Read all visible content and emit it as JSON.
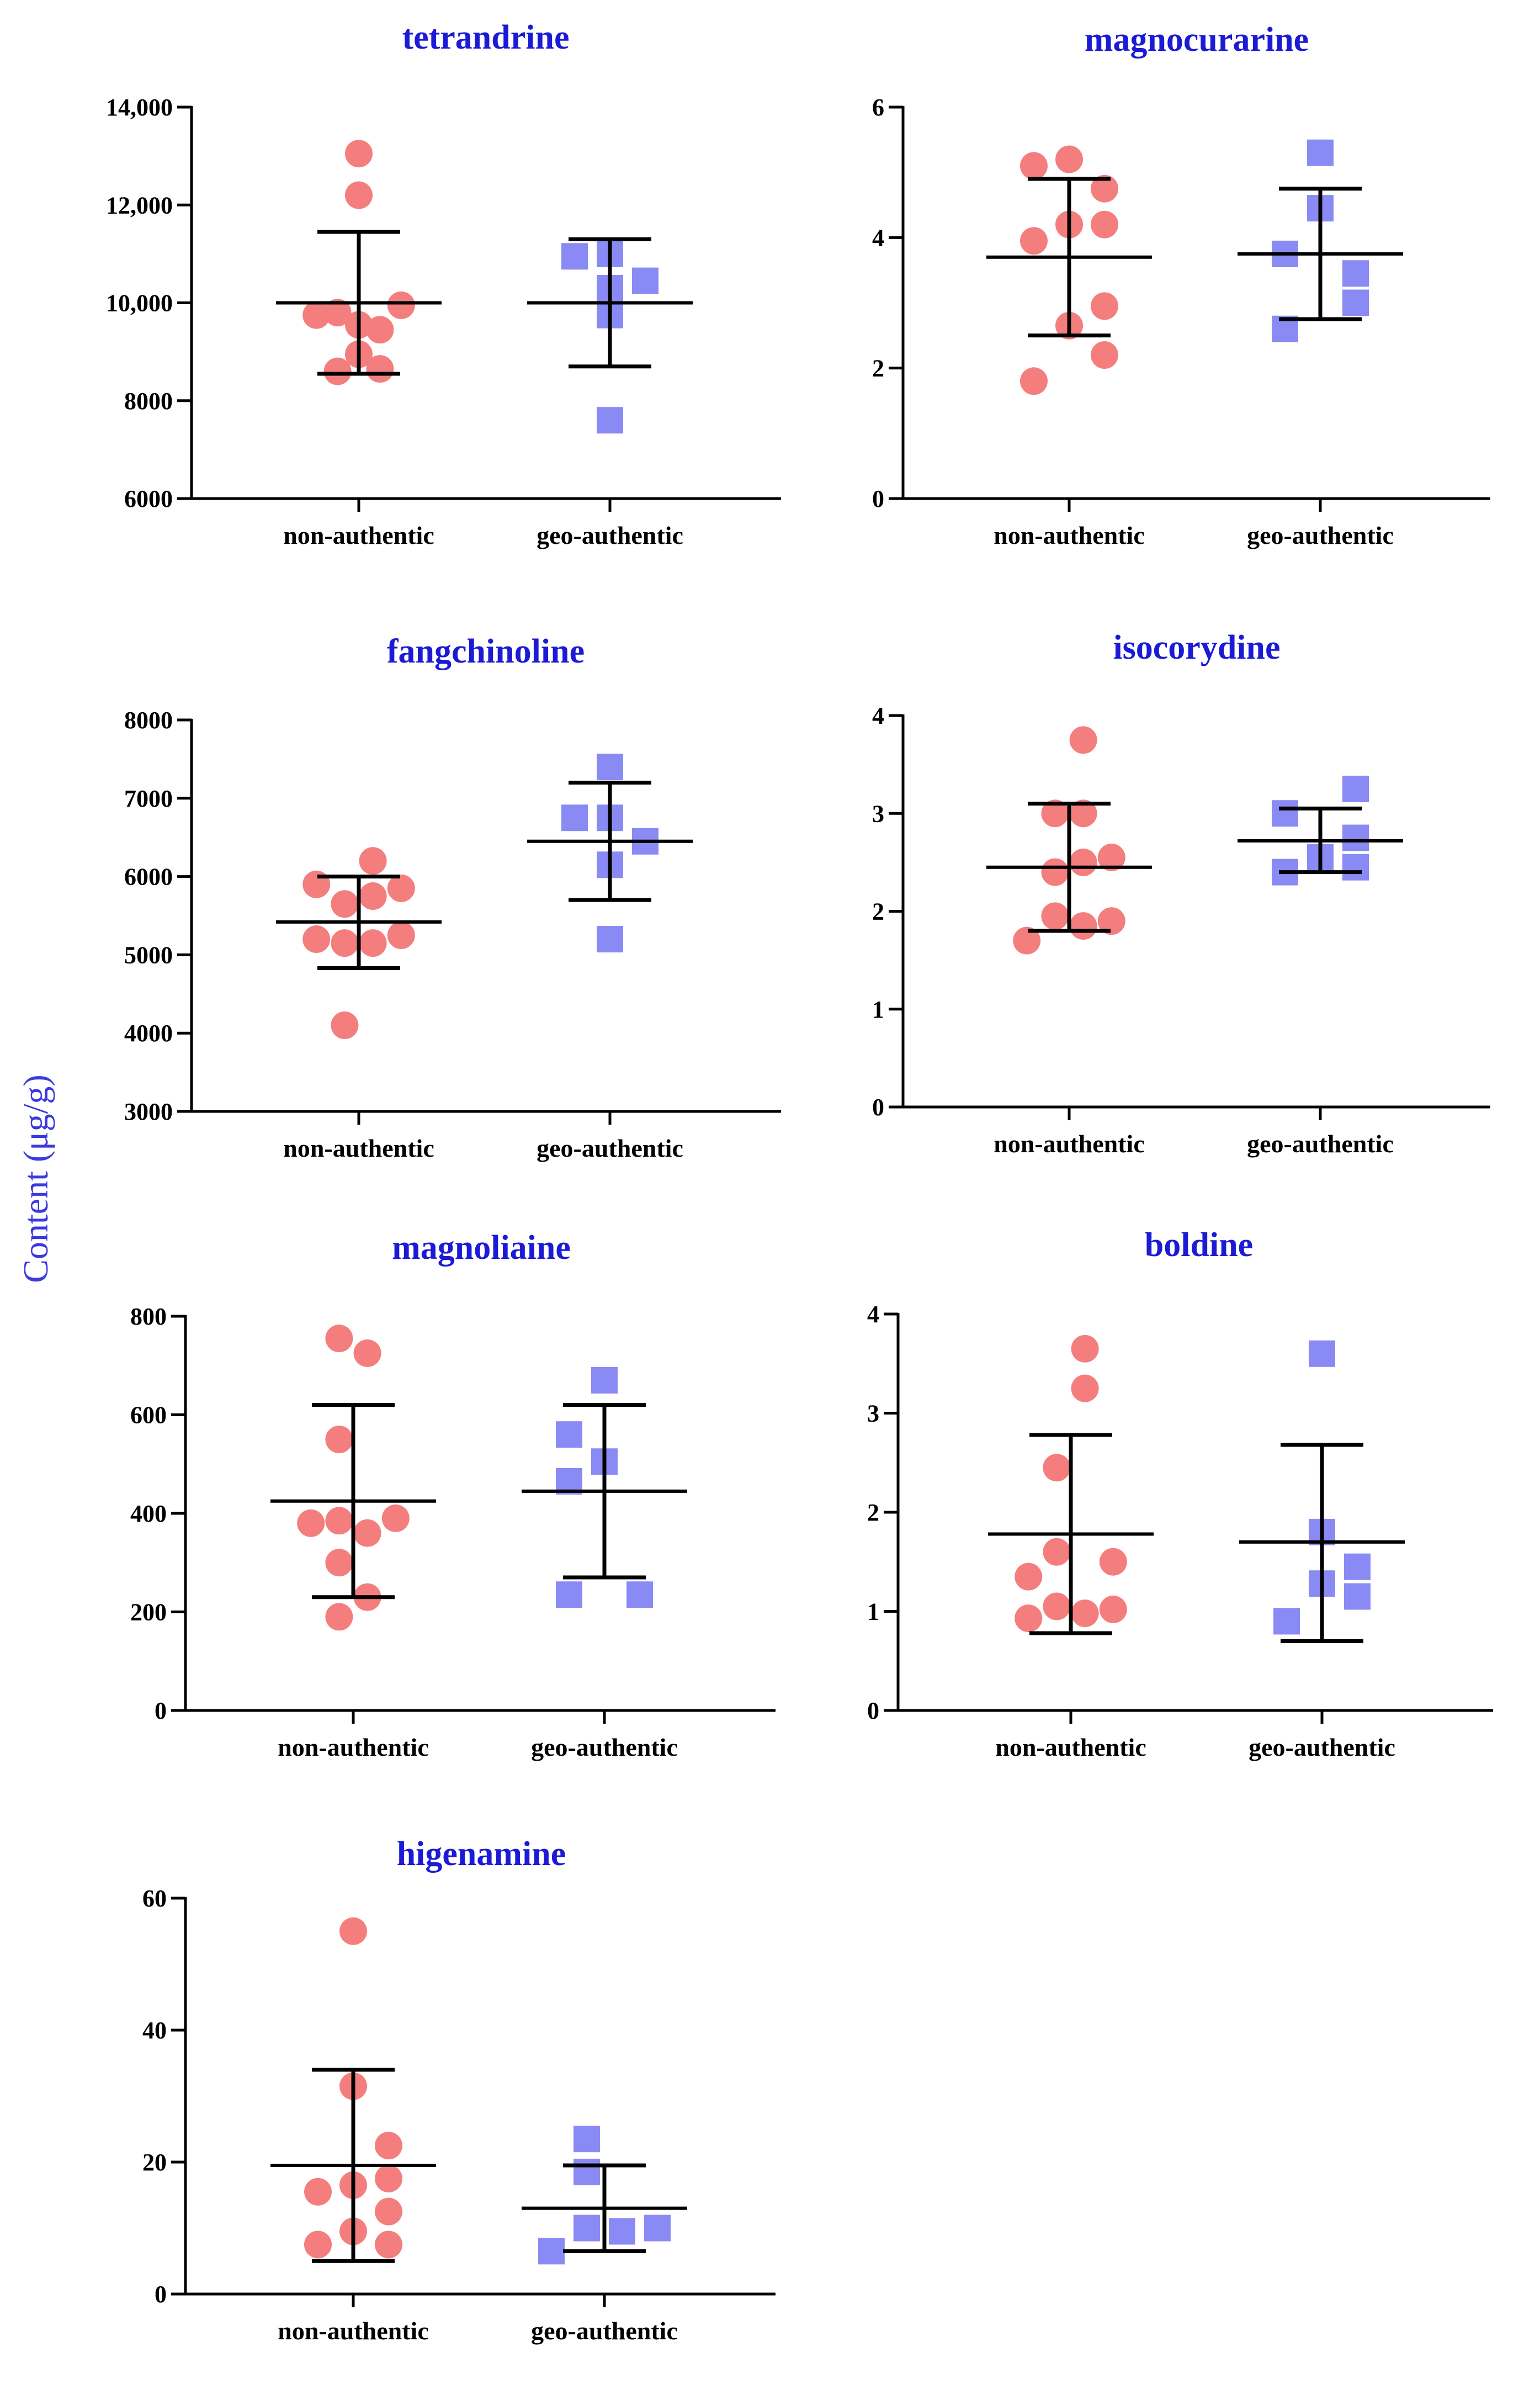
{
  "y_label": "Content (μg/g)",
  "colors": {
    "title": "#1b1bd6",
    "axis_label": "#3a3ae0",
    "circle": "#f47e7e",
    "square": "#8a8af5",
    "bars": "#000000"
  },
  "chart_data": [
    {
      "type": "scatter",
      "title": "tetrandrine",
      "ylim": [
        6000,
        14000
      ],
      "yticks": [
        6000,
        8000,
        10000,
        12000,
        14000
      ],
      "ytick_labels": [
        "6000",
        "8000",
        "10,000",
        "12,000",
        "14,000"
      ],
      "categories": [
        "non-authentic",
        "geo-authentic"
      ],
      "series": [
        {
          "category": "non-authentic",
          "marker": "circle",
          "points": [
            [
              -1.2,
              9750
            ],
            [
              -0.6,
              9800
            ],
            [
              0,
              13050
            ],
            [
              0,
              12200
            ],
            [
              0,
              9550
            ],
            [
              0,
              8950
            ],
            [
              0.6,
              9450
            ],
            [
              1.2,
              9950
            ],
            [
              -0.6,
              8600
            ],
            [
              0.6,
              8650
            ]
          ],
          "mean": 10000,
          "err_high": 11450,
          "err_low": 8550
        },
        {
          "category": "geo-authentic",
          "marker": "square",
          "points": [
            [
              -1,
              10950
            ],
            [
              0,
              11000
            ],
            [
              0,
              10300
            ],
            [
              0,
              9750
            ],
            [
              1,
              10450
            ],
            [
              0,
              7600
            ]
          ],
          "mean": 10000,
          "err_high": 11300,
          "err_low": 8700
        }
      ]
    },
    {
      "type": "scatter",
      "title": "magnocurarine",
      "ylim": [
        0,
        6
      ],
      "yticks": [
        0,
        2,
        4,
        6
      ],
      "ytick_labels": [
        "0",
        "2",
        "4",
        "6"
      ],
      "categories": [
        "non-authentic",
        "geo-authentic"
      ],
      "series": [
        {
          "category": "non-authentic",
          "marker": "circle",
          "points": [
            [
              -1,
              5.1
            ],
            [
              0,
              5.2
            ],
            [
              1,
              4.75
            ],
            [
              -1,
              3.95
            ],
            [
              0,
              4.2
            ],
            [
              1,
              4.2
            ],
            [
              0,
              2.65
            ],
            [
              1,
              2.95
            ],
            [
              1,
              2.2
            ],
            [
              -1,
              1.8
            ]
          ],
          "mean": 3.7,
          "err_high": 4.9,
          "err_low": 2.5
        },
        {
          "category": "geo-authentic",
          "marker": "square",
          "points": [
            [
              0,
              5.3
            ],
            [
              0,
              4.45
            ],
            [
              -1,
              3.75
            ],
            [
              1,
              3.45
            ],
            [
              1,
              3.0
            ],
            [
              -1,
              2.6
            ]
          ],
          "mean": 3.75,
          "err_high": 4.75,
          "err_low": 2.75
        }
      ]
    },
    {
      "type": "scatter",
      "title": "fangchinoline",
      "ylim": [
        3000,
        8000
      ],
      "yticks": [
        3000,
        4000,
        5000,
        6000,
        7000,
        8000
      ],
      "ytick_labels": [
        "3000",
        "4000",
        "5000",
        "6000",
        "7000",
        "8000"
      ],
      "categories": [
        "non-authentic",
        "geo-authentic"
      ],
      "series": [
        {
          "category": "non-authentic",
          "marker": "circle",
          "points": [
            [
              -1.2,
              5900
            ],
            [
              0.4,
              6200
            ],
            [
              1.2,
              5850
            ],
            [
              -0.4,
              5650
            ],
            [
              0.4,
              5750
            ],
            [
              -1.2,
              5200
            ],
            [
              -0.4,
              5150
            ],
            [
              0.4,
              5150
            ],
            [
              1.2,
              5250
            ],
            [
              -0.4,
              4100
            ]
          ],
          "mean": 5420,
          "err_high": 6000,
          "err_low": 4830
        },
        {
          "category": "geo-authentic",
          "marker": "square",
          "points": [
            [
              0,
              7400
            ],
            [
              -1,
              6750
            ],
            [
              0,
              6750
            ],
            [
              1,
              6450
            ],
            [
              0,
              6150
            ],
            [
              0,
              5200
            ]
          ],
          "mean": 6450,
          "err_high": 7200,
          "err_low": 5700
        }
      ]
    },
    {
      "type": "scatter",
      "title": "isocorydine",
      "ylim": [
        0,
        4
      ],
      "yticks": [
        0,
        1,
        2,
        3,
        4
      ],
      "ytick_labels": [
        "0",
        "1",
        "2",
        "3",
        "4"
      ],
      "categories": [
        "non-authentic",
        "geo-authentic"
      ],
      "series": [
        {
          "category": "non-authentic",
          "marker": "circle",
          "points": [
            [
              0.4,
              3.75
            ],
            [
              -0.4,
              3.0
            ],
            [
              0.4,
              3.0
            ],
            [
              -0.4,
              2.4
            ],
            [
              0.4,
              2.5
            ],
            [
              1.2,
              2.55
            ],
            [
              -0.4,
              1.95
            ],
            [
              0.4,
              1.85
            ],
            [
              1.2,
              1.9
            ],
            [
              -1.2,
              1.7
            ]
          ],
          "mean": 2.45,
          "err_high": 3.1,
          "err_low": 1.8
        },
        {
          "category": "geo-authentic",
          "marker": "square",
          "points": [
            [
              -1,
              3.0
            ],
            [
              1,
              3.25
            ],
            [
              1,
              2.75
            ],
            [
              0,
              2.55
            ],
            [
              -1,
              2.4
            ],
            [
              1,
              2.45
            ]
          ],
          "mean": 2.72,
          "err_high": 3.05,
          "err_low": 2.4
        }
      ]
    },
    {
      "type": "scatter",
      "title": "magnoliaine",
      "ylim": [
        0,
        800
      ],
      "yticks": [
        0,
        200,
        400,
        600,
        800
      ],
      "ytick_labels": [
        "0",
        "200",
        "400",
        "600",
        "800"
      ],
      "categories": [
        "non-authentic",
        "geo-authentic"
      ],
      "series": [
        {
          "category": "non-authentic",
          "marker": "circle",
          "points": [
            [
              -0.4,
              755
            ],
            [
              0.4,
              725
            ],
            [
              -0.4,
              550
            ],
            [
              -1.2,
              380
            ],
            [
              -0.4,
              385
            ],
            [
              0.4,
              360
            ],
            [
              1.2,
              390
            ],
            [
              -0.4,
              300
            ],
            [
              0.4,
              230
            ],
            [
              -0.4,
              190
            ]
          ],
          "mean": 425,
          "err_high": 620,
          "err_low": 230
        },
        {
          "category": "geo-authentic",
          "marker": "square",
          "points": [
            [
              0,
              670
            ],
            [
              -1,
              560
            ],
            [
              0,
              505
            ],
            [
              -1,
              465
            ],
            [
              -1,
              235
            ],
            [
              1,
              235
            ]
          ],
          "mean": 445,
          "err_high": 620,
          "err_low": 270
        }
      ]
    },
    {
      "type": "scatter",
      "title": "boldine",
      "ylim": [
        0,
        4
      ],
      "yticks": [
        0,
        1,
        2,
        3,
        4
      ],
      "ytick_labels": [
        "0",
        "1",
        "2",
        "3",
        "4"
      ],
      "categories": [
        "non-authentic",
        "geo-authentic"
      ],
      "series": [
        {
          "category": "non-authentic",
          "marker": "circle",
          "points": [
            [
              0.4,
              3.65
            ],
            [
              0.4,
              3.25
            ],
            [
              -0.4,
              2.45
            ],
            [
              -0.4,
              1.6
            ],
            [
              1.2,
              1.5
            ],
            [
              -1.2,
              1.35
            ],
            [
              -0.4,
              1.05
            ],
            [
              0.4,
              0.98
            ],
            [
              1.2,
              1.02
            ],
            [
              -1.2,
              0.93
            ]
          ],
          "mean": 1.78,
          "err_high": 2.78,
          "err_low": 0.78
        },
        {
          "category": "geo-authentic",
          "marker": "square",
          "points": [
            [
              0,
              3.6
            ],
            [
              0,
              1.8
            ],
            [
              0,
              1.28
            ],
            [
              1,
              1.45
            ],
            [
              1,
              1.15
            ],
            [
              -1,
              0.9
            ]
          ],
          "mean": 1.7,
          "err_high": 2.68,
          "err_low": 0.7
        }
      ]
    },
    {
      "type": "scatter",
      "title": "higenamine",
      "ylim": [
        0,
        60
      ],
      "yticks": [
        0,
        20,
        40,
        60
      ],
      "ytick_labels": [
        "0",
        "20",
        "40",
        "60"
      ],
      "categories": [
        "non-authentic",
        "geo-authentic"
      ],
      "series": [
        {
          "category": "non-authentic",
          "marker": "circle",
          "points": [
            [
              0,
              55
            ],
            [
              0,
              31.5
            ],
            [
              1,
              22.5
            ],
            [
              -1,
              15.5
            ],
            [
              0,
              16.5
            ],
            [
              1,
              17.5
            ],
            [
              1,
              12.5
            ],
            [
              0,
              9.5
            ],
            [
              -1,
              7.5
            ],
            [
              1,
              7.5
            ]
          ],
          "mean": 19.5,
          "err_high": 34,
          "err_low": 5
        },
        {
          "category": "geo-authentic",
          "marker": "square",
          "points": [
            [
              -0.5,
              23.5
            ],
            [
              -0.5,
              18.5
            ],
            [
              -0.5,
              10
            ],
            [
              0.5,
              9.5
            ],
            [
              1.5,
              10
            ],
            [
              -1.5,
              6.5
            ]
          ],
          "mean": 13,
          "err_high": 19.5,
          "err_low": 6.5
        }
      ]
    }
  ]
}
